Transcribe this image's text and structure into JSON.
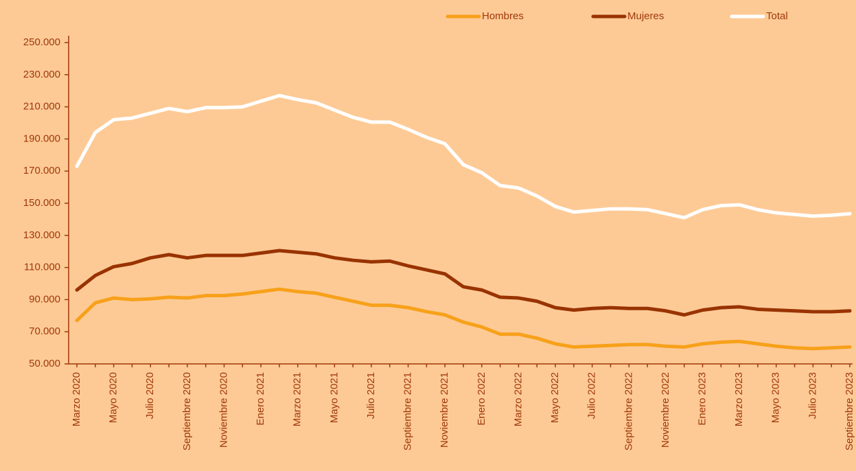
{
  "chart_data": {
    "type": "line",
    "categories": [
      "Marzo 2020",
      null,
      "Mayo 2020",
      null,
      "Julio 2020",
      null,
      "Septiembre 2020",
      null,
      "Noviembre 2020",
      null,
      "Enero 2021",
      null,
      "Marzo 2021",
      null,
      "Mayo 2021",
      null,
      "Julio 2021",
      null,
      "Septiembre 2021",
      null,
      "Noviembre 2021",
      null,
      "Enero 2022",
      null,
      "Marzo 2022",
      null,
      "Mayo 2022",
      null,
      "Julio 2022",
      null,
      "Septiembre 2022",
      null,
      "Noviembre 2022",
      null,
      "Enero 2023",
      null,
      "Marzo 2023",
      null,
      "Mayo 2023",
      null,
      "Julio 2023",
      null,
      "Septiembre 2023"
    ],
    "series": [
      {
        "name": "Hombres",
        "color": "#f7a11a",
        "values": [
          77000,
          88000,
          91000,
          90000,
          90500,
          91500,
          91000,
          92500,
          92500,
          93500,
          95000,
          96500,
          95000,
          94000,
          91500,
          89000,
          86500,
          86500,
          85000,
          82500,
          80500,
          76000,
          73000,
          68500,
          68500,
          66000,
          62500,
          60500,
          61000,
          61500,
          62000,
          62000,
          61000,
          60500,
          62500,
          63500,
          64000,
          62500,
          61000,
          60000,
          59500,
          60000,
          60500
        ]
      },
      {
        "name": "Mujeres",
        "color": "#993300",
        "values": [
          96000,
          105000,
          110500,
          112500,
          116000,
          118000,
          116000,
          117500,
          117500,
          117500,
          119000,
          120500,
          119500,
          118500,
          116000,
          114500,
          113500,
          114000,
          111000,
          108500,
          106000,
          98000,
          96000,
          91500,
          91000,
          89000,
          85000,
          83500,
          84500,
          85000,
          84500,
          84500,
          83000,
          80500,
          83500,
          85000,
          85500,
          84000,
          83500,
          83000,
          82500,
          82500,
          83000
        ]
      },
      {
        "name": "Total",
        "color": "#ffffff",
        "values": [
          173000,
          194000,
          202000,
          203000,
          206000,
          209000,
          207000,
          209500,
          209500,
          210000,
          213500,
          217000,
          214500,
          212500,
          208000,
          203500,
          200500,
          200500,
          196000,
          191000,
          187000,
          174000,
          169000,
          161000,
          159500,
          154500,
          148000,
          144500,
          145500,
          146500,
          146500,
          146000,
          143500,
          141000,
          146000,
          148500,
          149000,
          146000,
          144000,
          143000,
          142000,
          142500,
          143500
        ]
      }
    ],
    "ylim": [
      50000,
      250000
    ],
    "yticks": [
      {
        "value": 50000,
        "label": "50.000"
      },
      {
        "value": 70000,
        "label": "70.000"
      },
      {
        "value": 90000,
        "label": "90.000"
      },
      {
        "value": 110000,
        "label": "110.000"
      },
      {
        "value": 130000,
        "label": "130.000"
      },
      {
        "value": 150000,
        "label": "150.000"
      },
      {
        "value": 170000,
        "label": "170.000"
      },
      {
        "value": 190000,
        "label": "190.000"
      },
      {
        "value": 210000,
        "label": "210.000"
      },
      {
        "value": 230000,
        "label": "230.000"
      },
      {
        "value": 250000,
        "label": "250.000"
      }
    ],
    "legend": "top-right"
  }
}
